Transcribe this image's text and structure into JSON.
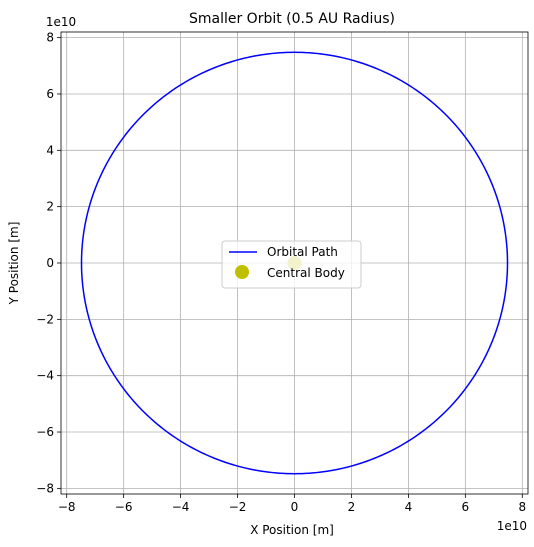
{
  "chart_data": {
    "type": "line",
    "title": "Smaller Orbit (0.5 AU Radius)",
    "xlabel": "X Position [m]",
    "ylabel": "Y Position [m]",
    "x_offset_text": "1e10",
    "y_offset_text": "1e10",
    "xlim": [
      -8.2,
      8.2
    ],
    "ylim": [
      -8.2,
      8.2
    ],
    "xticks": [
      -8,
      -6,
      -4,
      -2,
      0,
      2,
      4,
      6,
      8
    ],
    "yticks": [
      -8,
      -6,
      -4,
      -2,
      0,
      2,
      4,
      6,
      8
    ],
    "xtick_labels": [
      "−8",
      "−6",
      "−4",
      "−2",
      "0",
      "2",
      "4",
      "6",
      "8"
    ],
    "ytick_labels": [
      "−8",
      "−6",
      "−4",
      "−2",
      "0",
      "2",
      "4",
      "6",
      "8"
    ],
    "grid": true,
    "legend_position": "center",
    "series": [
      {
        "name": "Orbital Path",
        "kind": "line",
        "color": "#0000ff",
        "shape": "circle",
        "center": [
          0,
          0
        ],
        "radius": 7.48
      },
      {
        "name": "Central Body",
        "kind": "marker",
        "color": "#bfbf00",
        "x": [
          0
        ],
        "y": [
          0
        ]
      }
    ]
  }
}
